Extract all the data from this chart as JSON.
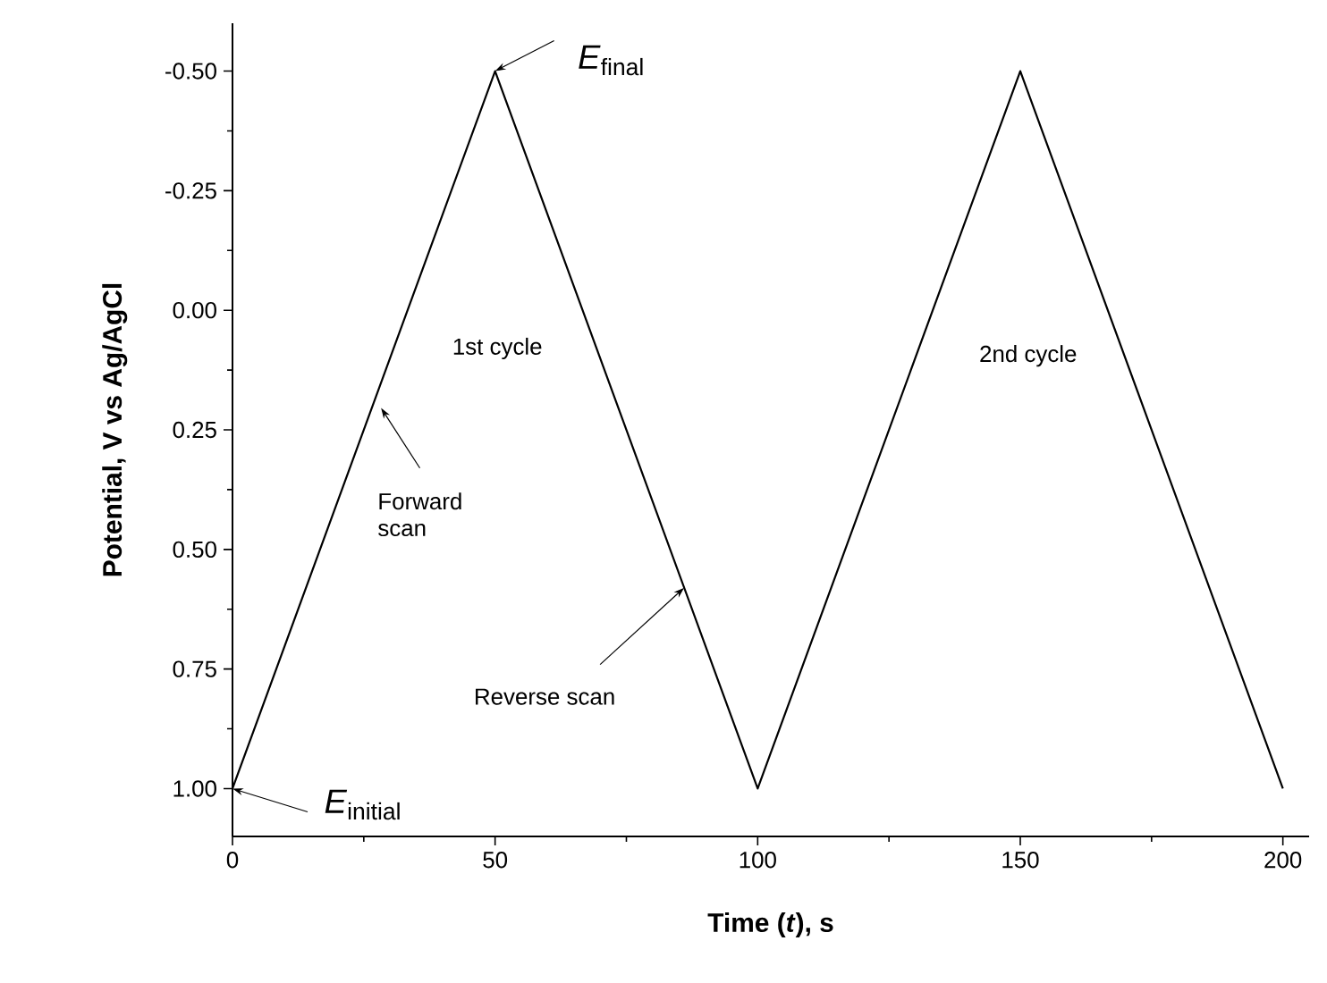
{
  "chart_data": {
    "type": "line",
    "xlabel": "Time (*t*), s",
    "ylabel": "Potential, V vs Ag/AgCl",
    "x": [
      0,
      50,
      100,
      150,
      200
    ],
    "series": [
      {
        "color": "#000000",
        "values": [
          1.0,
          -0.5,
          1.0,
          -0.5,
          1.0
        ]
      }
    ],
    "xlim": [
      0,
      205
    ],
    "xticks": [
      0,
      50,
      100,
      150,
      200
    ],
    "ylim": [
      1.1,
      -0.6
    ],
    "yticks": [
      {
        "value": -0.5,
        "label": "-0.50"
      },
      {
        "value": -0.25,
        "label": "-0.25"
      },
      {
        "value": 0,
        "label": "0.00"
      },
      {
        "value": 0.25,
        "label": "0.25"
      },
      {
        "value": 0.5,
        "label": "0.50"
      },
      {
        "value": 0.75,
        "label": "0.75"
      },
      {
        "value": 1.0,
        "label": "1.00"
      }
    ],
    "grid": false,
    "marker": "none",
    "line_style": "solid",
    "annotations": [
      {
        "text": "*E*$_{initial}$",
        "x": 0,
        "y": 1.0
      },
      {
        "text": "*E*$_{final}$",
        "x": 50,
        "y": -0.5
      },
      "Forward scan",
      {
        "text": "Reverse scan",
        "x": 86,
        "y": 0.58
      },
      "1st cycle",
      "2nd cycle"
    ]
  }
}
